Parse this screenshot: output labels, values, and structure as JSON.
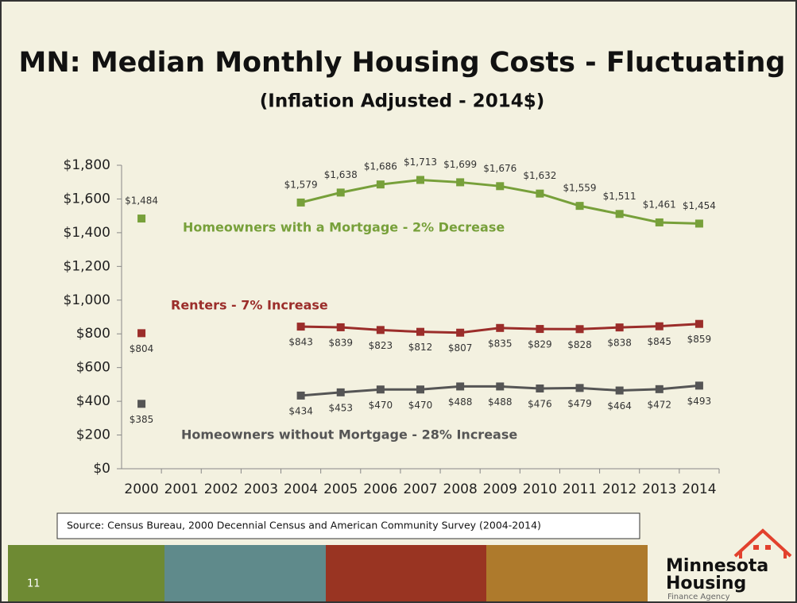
{
  "chart_data": {
    "type": "line",
    "title": "MN: Median Monthly Housing Costs - Fluctuating",
    "subtitle": "(Inflation Adjusted - 2014$)",
    "categories": [
      "2000",
      "2001",
      "2002",
      "2003",
      "2004",
      "2005",
      "2006",
      "2007",
      "2008",
      "2009",
      "2010",
      "2011",
      "2012",
      "2013",
      "2014"
    ],
    "series": [
      {
        "name": "Homeowners with a Mortgage - 2% Decrease",
        "color": "#77a03a",
        "values": [
          1484,
          null,
          null,
          null,
          1579,
          1638,
          1686,
          1713,
          1699,
          1676,
          1632,
          1559,
          1511,
          1461,
          1454
        ],
        "value_labels": [
          "$1,484",
          null,
          null,
          null,
          "$1,579",
          "$1,638",
          "$1,686",
          "$1,713",
          "$1,699",
          "$1,676",
          "$1,632",
          "$1,559",
          "$1,511",
          "$1,461",
          "$1,454"
        ]
      },
      {
        "name": "Renters - 7% Increase",
        "color": "#9b2d2a",
        "values": [
          804,
          null,
          null,
          null,
          843,
          839,
          823,
          812,
          807,
          835,
          829,
          828,
          838,
          845,
          859
        ],
        "value_labels": [
          "$804",
          null,
          null,
          null,
          "$843",
          "$839",
          "$823",
          "$812",
          "$807",
          "$835",
          "$829",
          "$828",
          "$838",
          "$845",
          "$859"
        ]
      },
      {
        "name": "Homeowners without Mortgage - 28% Increase",
        "color": "#555555",
        "values": [
          385,
          null,
          null,
          null,
          434,
          453,
          470,
          470,
          488,
          488,
          476,
          479,
          464,
          472,
          493
        ],
        "value_labels": [
          "$385",
          null,
          null,
          null,
          "$434",
          "$453",
          "$470",
          "$470",
          "$488",
          "$488",
          "$476",
          "$479",
          "$464",
          "$472",
          "$493"
        ]
      }
    ],
    "ylim": [
      0,
      1800
    ],
    "yticks": [
      {
        "value": 0,
        "label": "$0"
      },
      {
        "value": 200,
        "label": "$200"
      },
      {
        "value": 400,
        "label": "$400"
      },
      {
        "value": 600,
        "label": "$600"
      },
      {
        "value": 800,
        "label": "$800"
      },
      {
        "value": 1000,
        "label": "$1,000"
      },
      {
        "value": 1200,
        "label": "$1,200"
      },
      {
        "value": 1400,
        "label": "$1,400"
      },
      {
        "value": 1600,
        "label": "$1,600"
      },
      {
        "value": 1800,
        "label": "$1,800"
      }
    ],
    "source": "Source:  Census Bureau, 2000 Decennial Census and American Community Survey (2004-2014)"
  },
  "slide_number": "11",
  "logo": {
    "line1": "Minnesota",
    "line2": "Housing",
    "line3": "Finance Agency"
  }
}
